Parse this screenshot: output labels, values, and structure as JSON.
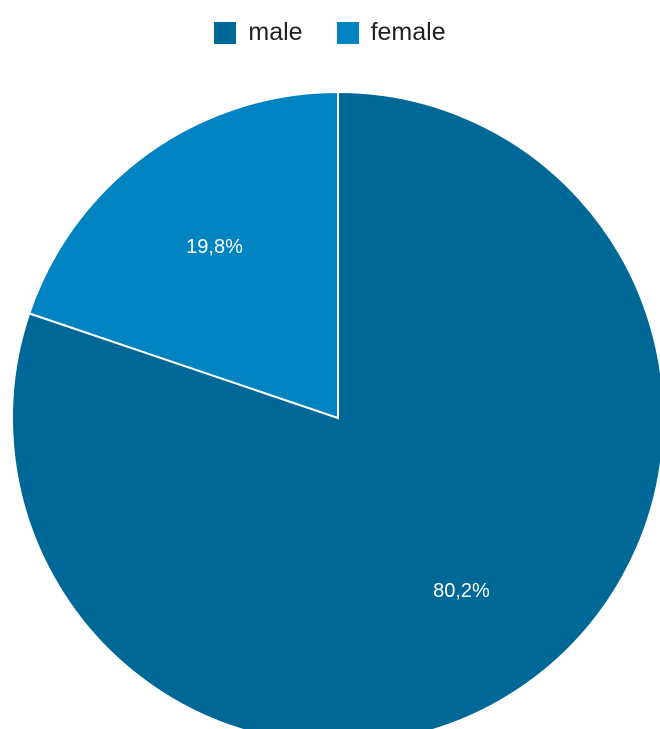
{
  "chart_data": {
    "type": "pie",
    "legend_position": "top",
    "slices": [
      {
        "label": "male",
        "value": 80.2,
        "display": "80,2%",
        "color": "#006896"
      },
      {
        "label": "female",
        "value": 19.8,
        "display": "19,8%",
        "color": "#0083c1"
      }
    ]
  }
}
